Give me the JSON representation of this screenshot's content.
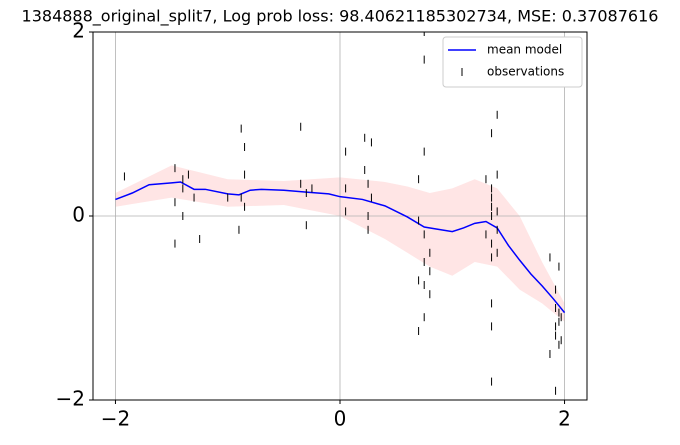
{
  "chart_data": {
    "type": "line",
    "title": "1384888_original_split7, Log prob loss: 98.40621185302734, MSE: 0.37087616",
    "xlim": [
      -2.2,
      2.2
    ],
    "ylim": [
      -2,
      2
    ],
    "xticks": [
      {
        "value": -2,
        "label": "−2"
      },
      0,
      2
    ],
    "yticks": [
      {
        "value": -2,
        "label": "−2"
      },
      0,
      2
    ],
    "grid": true,
    "legend": "upper right",
    "band": {
      "color": "#ffe5e5",
      "x": [
        -2,
        -1.5,
        -1.0,
        -0.5,
        0,
        0.4,
        0.6,
        0.8,
        1.0,
        1.2,
        1.4,
        1.6,
        1.8,
        2.0
      ],
      "upper": [
        0.25,
        0.55,
        0.4,
        0.38,
        0.42,
        0.37,
        0.32,
        0.25,
        0.3,
        0.4,
        0.3,
        0.0,
        -0.5,
        -0.95
      ],
      "lower": [
        0.1,
        0.2,
        0.1,
        0.12,
        0.0,
        -0.25,
        -0.4,
        -0.55,
        -0.65,
        -0.5,
        -0.55,
        -0.8,
        -0.95,
        -1.15
      ]
    },
    "series": [
      {
        "name": "mean model",
        "color": "#0000ff",
        "x": [
          -2,
          -1.85,
          -1.7,
          -1.5,
          -1.42,
          -1.3,
          -1.2,
          -1.0,
          -0.9,
          -0.8,
          -0.7,
          -0.5,
          -0.3,
          -0.1,
          0.0,
          0.2,
          0.4,
          0.6,
          0.75,
          0.85,
          1.0,
          1.1,
          1.2,
          1.3,
          1.4,
          1.5,
          1.6,
          1.7,
          1.8,
          1.9,
          2.0
        ],
        "values": [
          0.18,
          0.25,
          0.34,
          0.36,
          0.37,
          0.29,
          0.29,
          0.24,
          0.23,
          0.28,
          0.29,
          0.28,
          0.26,
          0.24,
          0.21,
          0.18,
          0.11,
          -0.01,
          -0.12,
          -0.14,
          -0.17,
          -0.13,
          -0.08,
          -0.06,
          -0.13,
          -0.32,
          -0.48,
          -0.63,
          -0.76,
          -0.9,
          -1.05
        ]
      },
      {
        "name": "observations",
        "color": "#000000",
        "x": [
          -1.92,
          -1.47,
          -1.47,
          -1.47,
          -1.4,
          -1.4,
          -1.4,
          -1.35,
          -1.3,
          -1.25,
          -1.0,
          -0.9,
          -0.88,
          -0.88,
          -0.85,
          -0.85,
          -0.85,
          -0.35,
          -0.35,
          -0.3,
          -0.3,
          -0.25,
          0.05,
          0.05,
          0.05,
          0.22,
          0.22,
          0.25,
          0.25,
          0.25,
          0.28,
          0.28,
          0.7,
          0.7,
          0.7,
          0.7,
          0.75,
          0.75,
          0.75,
          0.75,
          0.75,
          0.75,
          0.75,
          0.8,
          0.8,
          0.8,
          1.3,
          1.3,
          1.35,
          1.35,
          1.35,
          1.35,
          1.35,
          1.35,
          1.35,
          1.35,
          1.35,
          1.35,
          1.4,
          1.4,
          1.4,
          1.4,
          1.4,
          1.87,
          1.87,
          1.92,
          1.92,
          1.92,
          1.92,
          1.92,
          1.95,
          1.95,
          1.95,
          1.95,
          1.97,
          1.97
        ],
        "values": [
          0.43,
          0.52,
          -0.3,
          0.15,
          0.3,
          0.0,
          0.4,
          0.45,
          0.2,
          -0.25,
          0.2,
          -0.15,
          0.95,
          0.2,
          0.75,
          0.1,
          0.45,
          0.97,
          0.35,
          -0.1,
          0.25,
          0.3,
          0.7,
          0.3,
          0.05,
          0.85,
          0.5,
          0.35,
          0.0,
          -0.15,
          0.8,
          0.2,
          0.4,
          -0.05,
          -0.7,
          -1.25,
          -0.2,
          -0.5,
          -0.75,
          0.7,
          -1.1,
          2.0,
          1.7,
          -0.4,
          -0.85,
          -0.6,
          0.4,
          -0.2,
          0.9,
          -0.95,
          -0.45,
          0.1,
          -1.2,
          -1.8,
          0.3,
          0.2,
          0.0,
          -0.3,
          0.45,
          -0.4,
          1.1,
          0.05,
          -0.15,
          -0.45,
          -1.5,
          -1.0,
          -0.8,
          -1.3,
          -1.9,
          -1.2,
          -0.55,
          -1.4,
          -1.05,
          -1.15,
          -1.35,
          -1.1
        ]
      }
    ]
  }
}
